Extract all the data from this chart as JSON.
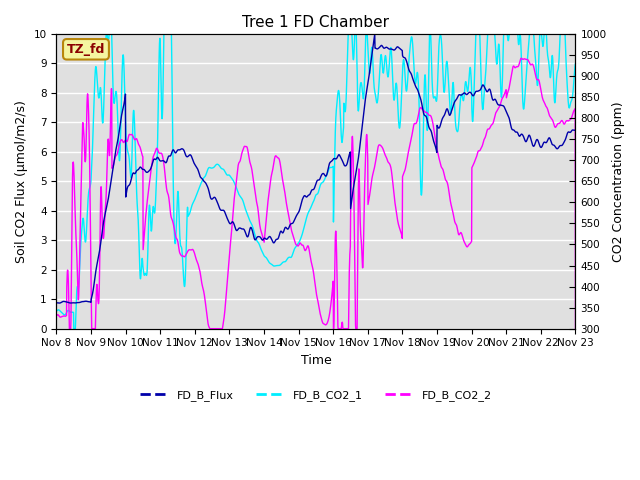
{
  "title": "Tree 1 FD Chamber",
  "xlabel": "Time",
  "ylabel_left": "Soil CO2 Flux (μmol/m2/s)",
  "ylabel_right": "CO2 Concentration (ppm)",
  "ylim_left": [
    0.0,
    10.0
  ],
  "ylim_right": [
    300,
    1000
  ],
  "yticks_left": [
    0.0,
    1.0,
    2.0,
    3.0,
    4.0,
    5.0,
    6.0,
    7.0,
    8.0,
    9.0,
    10.0
  ],
  "yticks_right": [
    300,
    350,
    400,
    450,
    500,
    550,
    600,
    650,
    700,
    750,
    800,
    850,
    900,
    950,
    1000
  ],
  "xtick_labels": [
    "Nov 8",
    "Nov 9",
    "Nov 10",
    "Nov 11",
    "Nov 12",
    "Nov 13",
    "Nov 14",
    "Nov 15",
    "Nov 16",
    "Nov 17",
    "Nov 18",
    "Nov 19",
    "Nov 20",
    "Nov 21",
    "Nov 22",
    "Nov 23"
  ],
  "color_flux": "#0000AA",
  "color_co2_1": "#00EEFF",
  "color_co2_2": "#FF00FF",
  "label_flux": "FD_B_Flux",
  "label_co2_1": "FD_B_CO2_1",
  "label_co2_2": "FD_B_CO2_2",
  "tz_label": "TZ_fd",
  "bg_color": "#E0E0E0",
  "linewidth": 1.0
}
